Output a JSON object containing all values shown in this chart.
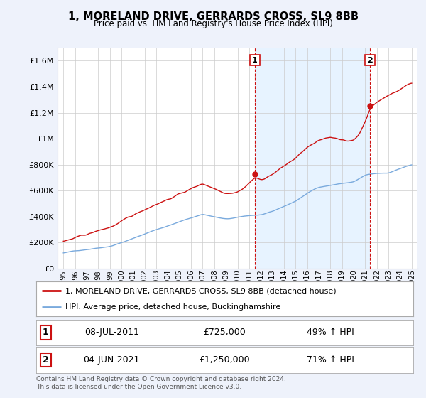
{
  "title": "1, MORELAND DRIVE, GERRARDS CROSS, SL9 8BB",
  "subtitle": "Price paid vs. HM Land Registry's House Price Index (HPI)",
  "ylim": [
    0,
    1700000
  ],
  "yticks": [
    0,
    200000,
    400000,
    600000,
    800000,
    1000000,
    1200000,
    1400000,
    1600000
  ],
  "hpi_color": "#7aaadd",
  "price_color": "#cc1111",
  "sale1_label": "1",
  "sale2_label": "2",
  "sale1": {
    "date": "08-JUL-2011",
    "price": "£725,000",
    "pct": "49% ↑ HPI"
  },
  "sale2": {
    "date": "04-JUN-2021",
    "price": "£1,250,000",
    "pct": "71% ↑ HPI"
  },
  "legend_line1": "1, MORELAND DRIVE, GERRARDS CROSS, SL9 8BB (detached house)",
  "legend_line2": "HPI: Average price, detached house, Buckinghamshire",
  "footnote": "Contains HM Land Registry data © Crown copyright and database right 2024.\nThis data is licensed under the Open Government Licence v3.0.",
  "background_color": "#eef2fb",
  "plot_bg_color": "#ffffff",
  "shade_color": "#ddeeff",
  "grid_color": "#cccccc",
  "x_start_year": 1995,
  "x_end_year": 2025,
  "sale1_year": 2011.5,
  "sale2_year": 2021.4
}
